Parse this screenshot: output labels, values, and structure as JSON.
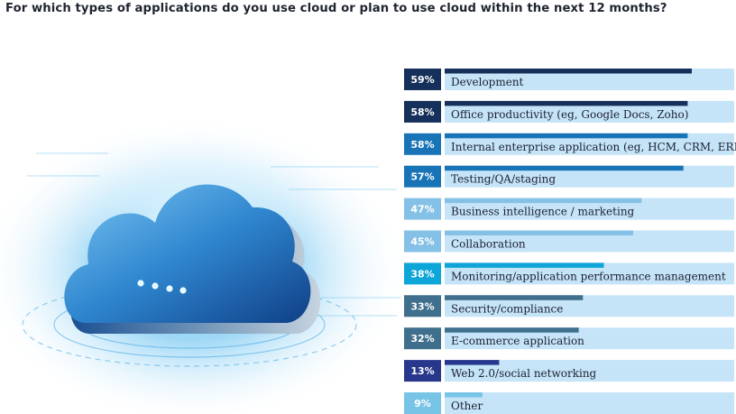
{
  "chart_data": {
    "type": "bar",
    "orientation": "horizontal",
    "title": "For which types of applications do you use cloud or plan to use cloud within the next 12 months?",
    "value_format": "percent",
    "xlim": [
      0,
      100
    ],
    "grid": false,
    "legend": "none",
    "categories": [
      "Development",
      "Office productivity (eg, Google Docs, Zoho)",
      "Internal enterprise application (eg, HCM, CRM, ERP)",
      "Testing/QA/staging",
      "Business intelligence / marketing",
      "Collaboration",
      "Monitoring/application performance management",
      "Security/compliance",
      "E-commerce application",
      "Web 2.0/social networking",
      "Other"
    ],
    "values": [
      59,
      58,
      58,
      57,
      47,
      45,
      38,
      33,
      32,
      13,
      9
    ],
    "value_labels": [
      "59%",
      "58%",
      "58%",
      "57%",
      "47%",
      "45%",
      "38%",
      "33%",
      "32%",
      "13%",
      "9%"
    ],
    "colors": {
      "track": "#c5e4f8",
      "bars": [
        "#15305a",
        "#15305a",
        "#1874b6",
        "#1874b6",
        "#85c0e6",
        "#85c0e6",
        "#0ea6d8",
        "#3f6f8c",
        "#3f6f8c",
        "#27378c",
        "#78c4e6"
      ]
    }
  }
}
